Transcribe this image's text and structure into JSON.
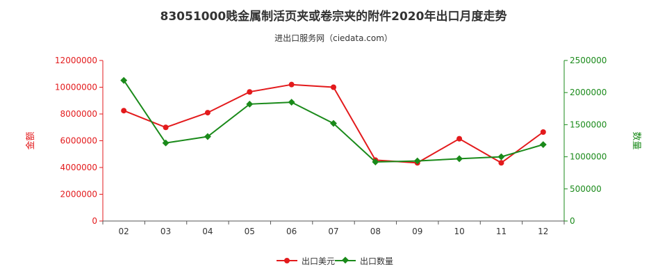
{
  "chart_data": {
    "type": "line",
    "title": "83051000贱金属制活页夹或卷宗夹的附件2020年出口月度走势",
    "subtitle": "进出口服务网（ciedata.com）",
    "categories": [
      "02",
      "03",
      "04",
      "05",
      "06",
      "07",
      "08",
      "09",
      "10",
      "11",
      "12"
    ],
    "y_left": {
      "label": "金额",
      "range": [
        0,
        12000000
      ],
      "ticks": [
        "0",
        "2000000",
        "4000000",
        "6000000",
        "8000000",
        "10000000",
        "12000000"
      ],
      "color": "#e31a1c"
    },
    "y_right": {
      "label": "数量",
      "range": [
        0,
        2500000
      ],
      "ticks": [
        "0",
        "500000",
        "1000000",
        "1500000",
        "2000000",
        "2500000"
      ],
      "color": "#1a8a1a"
    },
    "series": [
      {
        "name": "出口美元",
        "axis": "left",
        "color": "#e31a1c",
        "marker": "circle",
        "values": [
          8250000,
          7000000,
          8100000,
          9650000,
          10200000,
          10000000,
          4550000,
          4350000,
          6150000,
          4350000,
          6650000
        ]
      },
      {
        "name": "出口数量",
        "axis": "right",
        "color": "#1a8a1a",
        "marker": "diamond",
        "values": [
          2190000,
          1215000,
          1315000,
          1820000,
          1850000,
          1520000,
          920000,
          935000,
          970000,
          1000000,
          1190000
        ]
      }
    ],
    "grid": false,
    "legend_position": "bottom-center"
  }
}
